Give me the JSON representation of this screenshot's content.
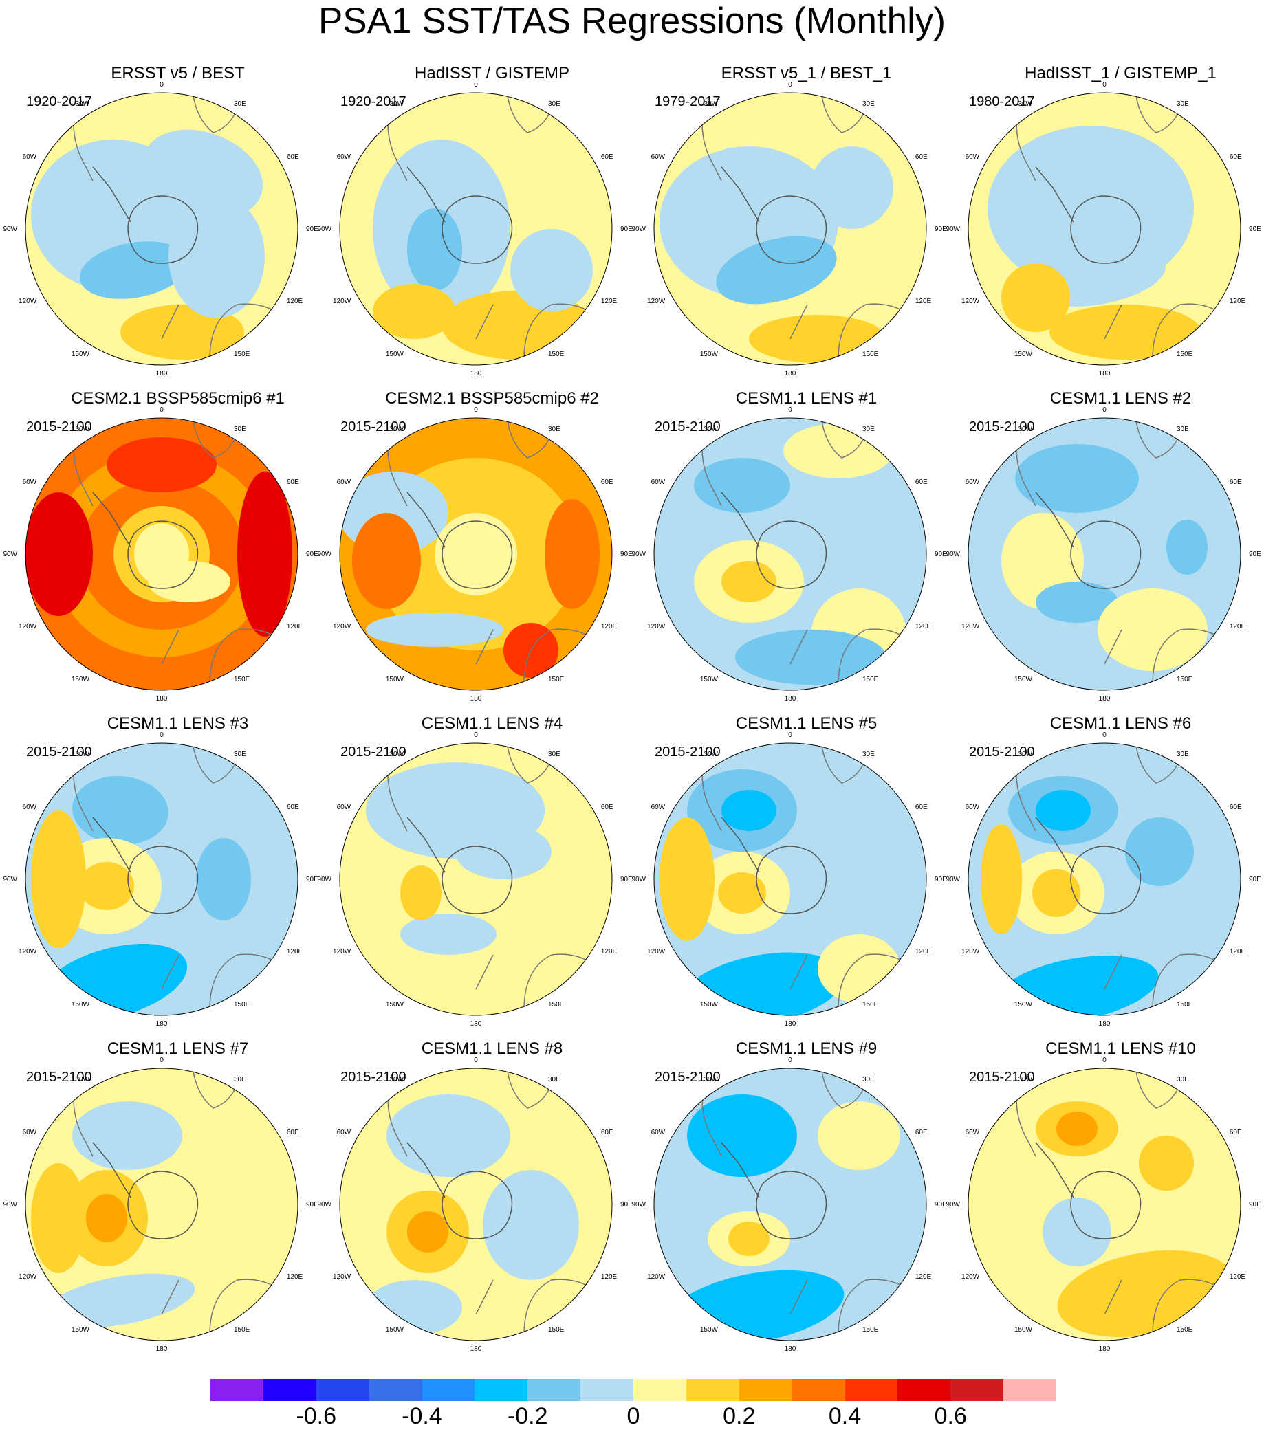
{
  "figure": {
    "title": "PSA1 SST/TAS Regressions (Monthly)"
  },
  "map_labels": {
    "lon_0": "0",
    "lon_30W": "30W",
    "lon_30E": "30E",
    "lon_60W": "60W",
    "lon_60E": "60E",
    "lon_90W": "90W",
    "lon_90E": "90E",
    "lon_120W": "120W",
    "lon_120E": "120E",
    "lon_150W": "150W",
    "lon_150E": "150E",
    "lon_180": "180"
  },
  "panels": [
    {
      "title": "ERSST v5 / BEST",
      "period": "1920-2017"
    },
    {
      "title": "HadISST / GISTEMP",
      "period": "1920-2017"
    },
    {
      "title": "ERSST v5_1 / BEST_1",
      "period": "1979-2017"
    },
    {
      "title": "HadISST_1 / GISTEMP_1",
      "period": "1980-2017"
    },
    {
      "title": "CESM2.1 BSSP585cmip6 #1",
      "period": "2015-2100"
    },
    {
      "title": "CESM2.1 BSSP585cmip6 #2",
      "period": "2015-2100"
    },
    {
      "title": "CESM1.1 LENS #1",
      "period": "2015-2100"
    },
    {
      "title": "CESM1.1 LENS #2",
      "period": "2015-2100"
    },
    {
      "title": "CESM1.1 LENS #3",
      "period": "2015-2100"
    },
    {
      "title": "CESM1.1 LENS #4",
      "period": "2015-2100"
    },
    {
      "title": "CESM1.1 LENS #5",
      "period": "2015-2100"
    },
    {
      "title": "CESM1.1 LENS #6",
      "period": "2015-2100"
    },
    {
      "title": "CESM1.1 LENS #7",
      "period": "2015-2100"
    },
    {
      "title": "CESM1.1 LENS #8",
      "period": "2015-2100"
    },
    {
      "title": "CESM1.1 LENS #9",
      "period": "2015-2100"
    },
    {
      "title": "CESM1.1 LENS #10",
      "period": "2015-2100"
    }
  ],
  "colorbar": {
    "colors": [
      "#8a1fef",
      "#1f00ff",
      "#2448f0",
      "#3670e8",
      "#1e90ff",
      "#00c0ff",
      "#73c8f0",
      "#b4ddf2",
      "#fff89c",
      "#ffd22e",
      "#ffa500",
      "#ff7300",
      "#ff3300",
      "#e60000",
      "#d01c1c",
      "#ffb3b3"
    ],
    "tick_labels": [
      "-0.6",
      "-0.4",
      "-0.2",
      "0",
      "0.2",
      "0.4",
      "0.6"
    ],
    "tick_values": [
      -0.6,
      -0.4,
      -0.2,
      0,
      0.2,
      0.4,
      0.6
    ]
  },
  "chart_data": {
    "type": "heatmap",
    "title": "PSA1 SST/TAS Regressions (Monthly)",
    "projection": "south polar stereographic",
    "contour_levels": [
      -0.7,
      -0.6,
      -0.5,
      -0.4,
      -0.3,
      -0.2,
      -0.1,
      0,
      0.1,
      0.2,
      0.3,
      0.4,
      0.5,
      0.6,
      0.7
    ],
    "panels": [
      {
        "name": "ERSST v5 / BEST",
        "period": "1920-2017",
        "dominant_range": [
          -0.2,
          0.2
        ]
      },
      {
        "name": "HadISST / GISTEMP",
        "period": "1920-2017",
        "dominant_range": [
          -0.2,
          0.2
        ]
      },
      {
        "name": "ERSST v5_1 / BEST_1",
        "period": "1979-2017",
        "dominant_range": [
          -0.2,
          0.2
        ]
      },
      {
        "name": "HadISST_1 / GISTEMP_1",
        "period": "1980-2017",
        "dominant_range": [
          -0.2,
          0.2
        ]
      },
      {
        "name": "CESM2.1 BSSP585cmip6 #1",
        "period": "2015-2100",
        "dominant_range": [
          0,
          0.5
        ]
      },
      {
        "name": "CESM2.1 BSSP585cmip6 #2",
        "period": "2015-2100",
        "dominant_range": [
          -0.1,
          0.4
        ]
      },
      {
        "name": "CESM1.1 LENS #1",
        "period": "2015-2100",
        "dominant_range": [
          -0.3,
          0.2
        ]
      },
      {
        "name": "CESM1.1 LENS #2",
        "period": "2015-2100",
        "dominant_range": [
          -0.3,
          0.2
        ]
      },
      {
        "name": "CESM1.1 LENS #3",
        "period": "2015-2100",
        "dominant_range": [
          -0.3,
          0.2
        ]
      },
      {
        "name": "CESM1.1 LENS #4",
        "period": "2015-2100",
        "dominant_range": [
          -0.2,
          0.2
        ]
      },
      {
        "name": "CESM1.1 LENS #5",
        "period": "2015-2100",
        "dominant_range": [
          -0.4,
          0.2
        ]
      },
      {
        "name": "CESM1.1 LENS #6",
        "period": "2015-2100",
        "dominant_range": [
          -0.3,
          0.2
        ]
      },
      {
        "name": "CESM1.1 LENS #7",
        "period": "2015-2100",
        "dominant_range": [
          -0.2,
          0.3
        ]
      },
      {
        "name": "CESM1.1 LENS #8",
        "period": "2015-2100",
        "dominant_range": [
          -0.2,
          0.3
        ]
      },
      {
        "name": "CESM1.1 LENS #9",
        "period": "2015-2100",
        "dominant_range": [
          -0.3,
          0.2
        ]
      },
      {
        "name": "CESM1.1 LENS #10",
        "period": "2015-2100",
        "dominant_range": [
          -0.2,
          0.3
        ]
      }
    ]
  }
}
